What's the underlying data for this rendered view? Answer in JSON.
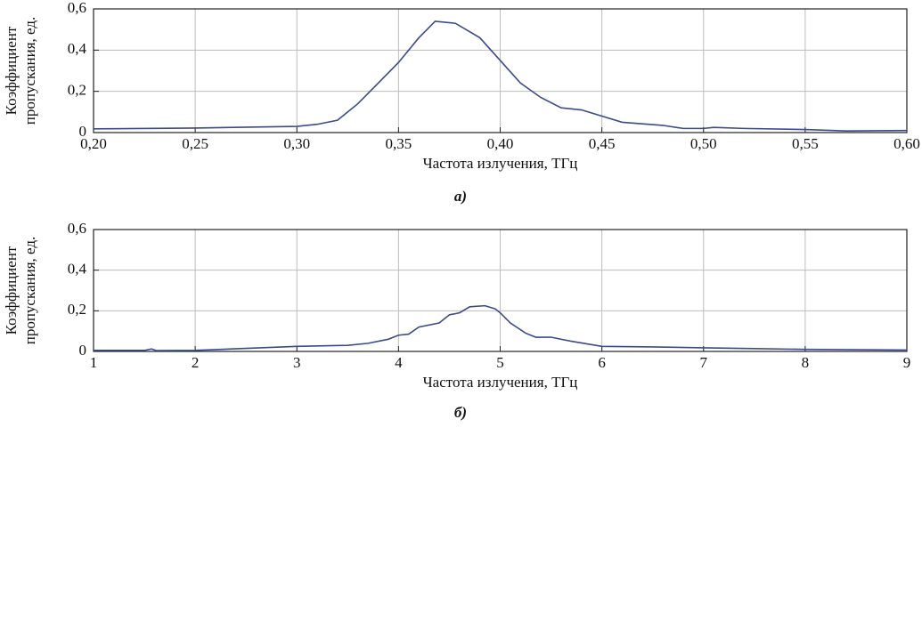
{
  "chart_data": [
    {
      "type": "line",
      "panel_label": "а)",
      "xlabel": "Частота излучения, ТГц",
      "ylabel": [
        "Коэффициент",
        "пропускания, ед."
      ],
      "x": [
        0.2,
        0.25,
        0.3,
        0.31,
        0.32,
        0.33,
        0.34,
        0.35,
        0.36,
        0.368,
        0.378,
        0.39,
        0.4,
        0.41,
        0.42,
        0.43,
        0.44,
        0.45,
        0.46,
        0.48,
        0.49,
        0.5,
        0.505,
        0.52,
        0.55,
        0.57,
        0.6
      ],
      "series": [
        {
          "color": "#3b4a8c",
          "values": [
            0.018,
            0.022,
            0.03,
            0.04,
            0.06,
            0.14,
            0.24,
            0.34,
            0.46,
            0.54,
            0.53,
            0.46,
            0.35,
            0.24,
            0.17,
            0.12,
            0.11,
            0.08,
            0.05,
            0.035,
            0.02,
            0.02,
            0.025,
            0.02,
            0.015,
            0.008,
            0.01
          ]
        }
      ],
      "xlim": [
        0.2,
        0.6
      ],
      "xticks": [
        {
          "value": 0.2,
          "label": "0,20"
        },
        {
          "value": 0.25,
          "label": "0,25"
        },
        {
          "value": 0.3,
          "label": "0,30"
        },
        {
          "value": 0.35,
          "label": "0,35"
        },
        {
          "value": 0.4,
          "label": "0,40"
        },
        {
          "value": 0.45,
          "label": "0,45"
        },
        {
          "value": 0.5,
          "label": "0,50"
        },
        {
          "value": 0.55,
          "label": "0,55"
        },
        {
          "value": 0.6,
          "label": "0,60"
        }
      ],
      "ylim": [
        0,
        0.6
      ],
      "yticks": [
        0,
        {
          "value": 0.2,
          "label": "0,2"
        },
        {
          "value": 0.4,
          "label": "0,4"
        },
        {
          "value": 0.6,
          "label": "0,6"
        }
      ],
      "grid": true
    },
    {
      "type": "line",
      "panel_label": "б)",
      "xlabel": "Частота излучения, ТГц",
      "ylabel": [
        "Коэффициент",
        "пропускания, ед."
      ],
      "x": [
        1,
        1.5,
        1.57,
        1.62,
        2,
        2.5,
        3,
        3.5,
        3.7,
        3.9,
        4.0,
        4.1,
        4.2,
        4.4,
        4.5,
        4.6,
        4.7,
        4.85,
        4.95,
        5.0,
        5.1,
        5.25,
        5.35,
        5.5,
        5.7,
        6.0,
        6.5,
        7.0,
        7.5,
        8,
        9
      ],
      "series": [
        {
          "color": "#3b4a8c",
          "values": [
            0.005,
            0.005,
            0.012,
            0.004,
            0.005,
            0.015,
            0.025,
            0.03,
            0.04,
            0.06,
            0.08,
            0.085,
            0.12,
            0.14,
            0.18,
            0.19,
            0.22,
            0.225,
            0.21,
            0.19,
            0.14,
            0.09,
            0.07,
            0.07,
            0.05,
            0.025,
            0.022,
            0.018,
            0.014,
            0.01,
            0.007
          ]
        }
      ],
      "xlim": [
        1,
        9
      ],
      "xticks": [
        1,
        2,
        3,
        4,
        5,
        6,
        7,
        8,
        9
      ],
      "ylim": [
        0,
        0.6
      ],
      "yticks": [
        0,
        {
          "value": 0.2,
          "label": "0,2"
        },
        {
          "value": 0.4,
          "label": "0,4"
        },
        {
          "value": 0.6,
          "label": "0,6"
        }
      ],
      "grid": true
    }
  ]
}
